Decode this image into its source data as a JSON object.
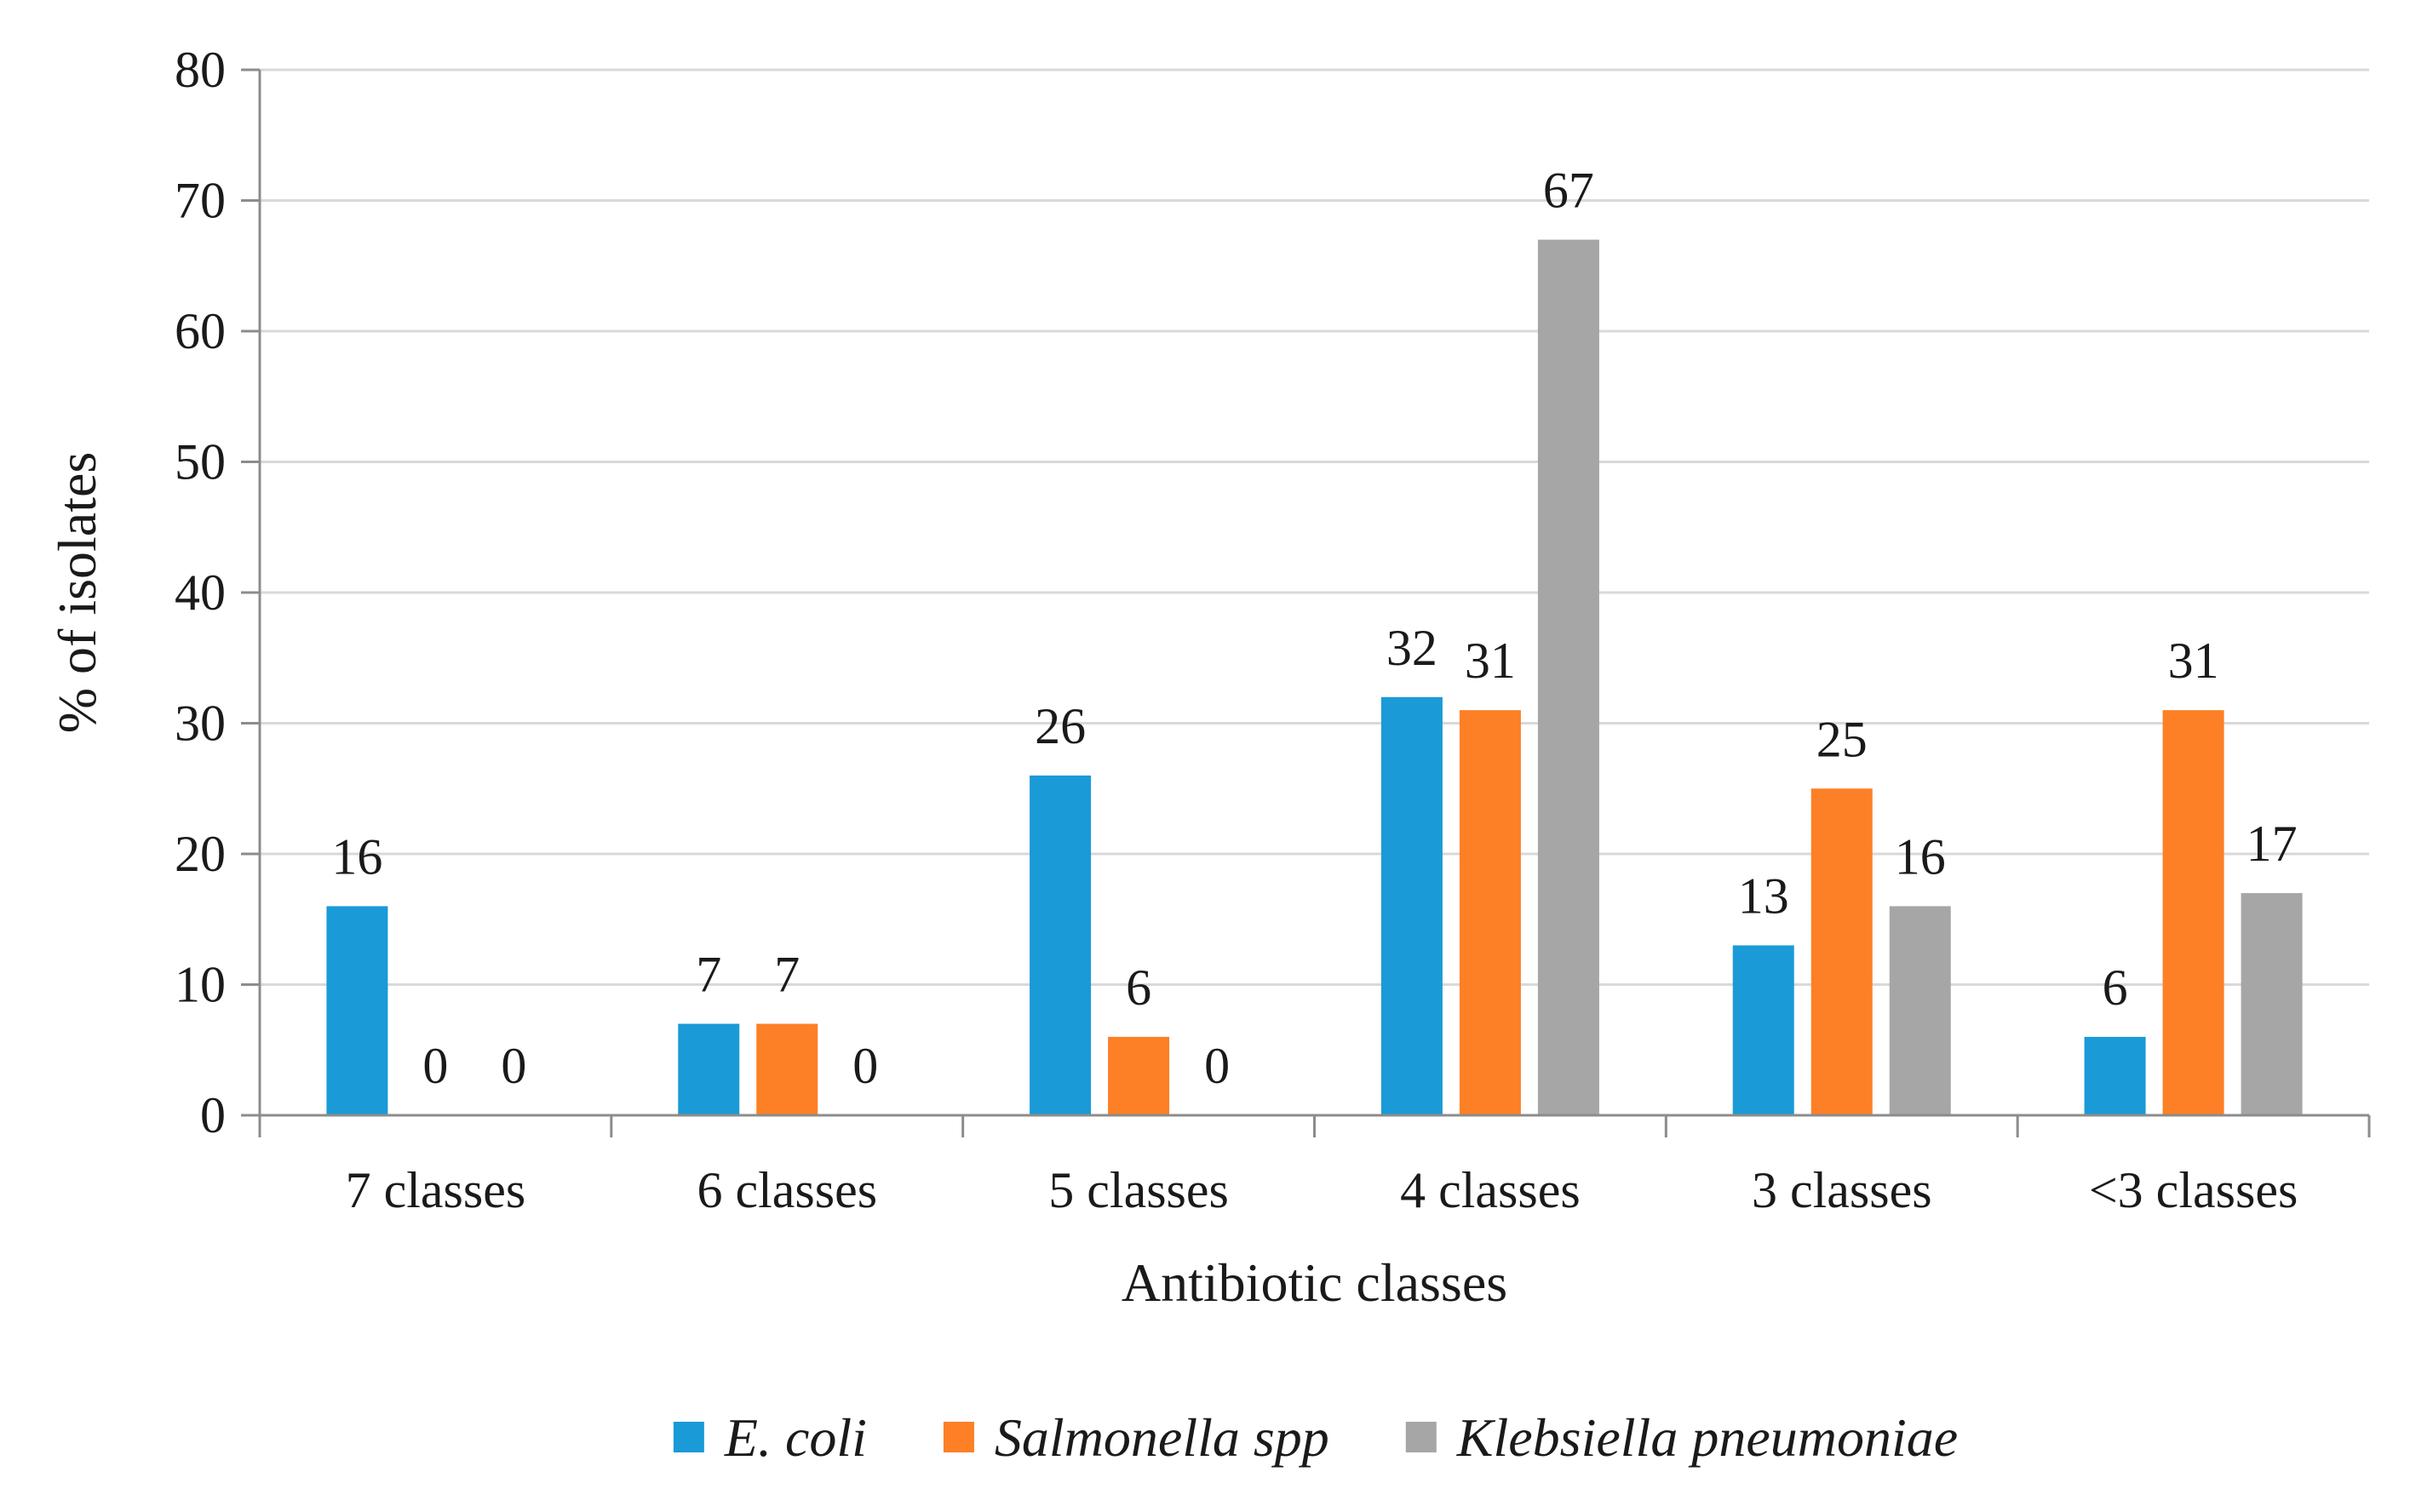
{
  "chart_data": {
    "type": "bar",
    "title": "",
    "xlabel": "Antibiotic classes",
    "ylabel": "% of isolates",
    "ylim": [
      0,
      80
    ],
    "yticks": [
      0,
      10,
      20,
      30,
      40,
      50,
      60,
      70,
      80
    ],
    "grid": true,
    "legend_position": "bottom",
    "categories": [
      "7 classes",
      "6 classes",
      "5 classes",
      "4 classes",
      "3 classes",
      "<3 classes"
    ],
    "series": [
      {
        "name": "E. coli",
        "color": "#1a9ad7",
        "values": [
          16,
          7,
          26,
          32,
          13,
          6
        ]
      },
      {
        "name": "Salmonella spp",
        "color": "#fd7f26",
        "values": [
          0,
          7,
          6,
          31,
          25,
          31
        ]
      },
      {
        "name": "Klebsiella pneumoniae",
        "color": "#a6a6a6",
        "values": [
          0,
          0,
          0,
          67,
          16,
          17
        ]
      }
    ]
  }
}
